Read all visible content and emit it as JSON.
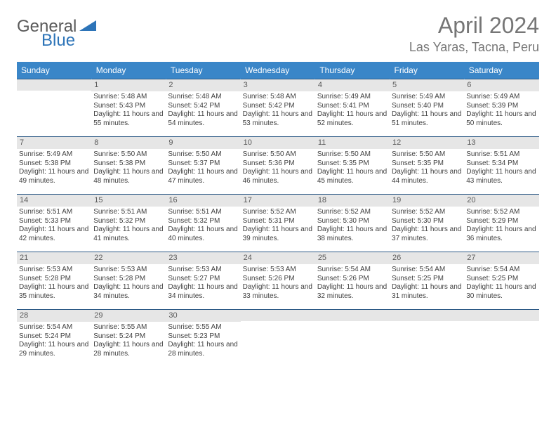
{
  "logo": {
    "part1": "General",
    "part2": "Blue"
  },
  "title": "April 2024",
  "location": "Las Yaras, Tacna, Peru",
  "colors": {
    "header_bg": "#3a86c8",
    "header_text": "#ffffff",
    "daynum_bg": "#e6e6e6",
    "daynum_text": "#5a5a5a",
    "row_border": "#2d5a86",
    "body_text": "#404040",
    "logo_gray": "#5a5a5a",
    "logo_blue": "#2d74b8",
    "title_color": "#767676"
  },
  "day_labels": [
    "Sunday",
    "Monday",
    "Tuesday",
    "Wednesday",
    "Thursday",
    "Friday",
    "Saturday"
  ],
  "weeks": [
    [
      null,
      {
        "n": "1",
        "sr": "5:48 AM",
        "ss": "5:43 PM",
        "dl": "11 hours and 55 minutes."
      },
      {
        "n": "2",
        "sr": "5:48 AM",
        "ss": "5:42 PM",
        "dl": "11 hours and 54 minutes."
      },
      {
        "n": "3",
        "sr": "5:48 AM",
        "ss": "5:42 PM",
        "dl": "11 hours and 53 minutes."
      },
      {
        "n": "4",
        "sr": "5:49 AM",
        "ss": "5:41 PM",
        "dl": "11 hours and 52 minutes."
      },
      {
        "n": "5",
        "sr": "5:49 AM",
        "ss": "5:40 PM",
        "dl": "11 hours and 51 minutes."
      },
      {
        "n": "6",
        "sr": "5:49 AM",
        "ss": "5:39 PM",
        "dl": "11 hours and 50 minutes."
      }
    ],
    [
      {
        "n": "7",
        "sr": "5:49 AM",
        "ss": "5:38 PM",
        "dl": "11 hours and 49 minutes."
      },
      {
        "n": "8",
        "sr": "5:50 AM",
        "ss": "5:38 PM",
        "dl": "11 hours and 48 minutes."
      },
      {
        "n": "9",
        "sr": "5:50 AM",
        "ss": "5:37 PM",
        "dl": "11 hours and 47 minutes."
      },
      {
        "n": "10",
        "sr": "5:50 AM",
        "ss": "5:36 PM",
        "dl": "11 hours and 46 minutes."
      },
      {
        "n": "11",
        "sr": "5:50 AM",
        "ss": "5:35 PM",
        "dl": "11 hours and 45 minutes."
      },
      {
        "n": "12",
        "sr": "5:50 AM",
        "ss": "5:35 PM",
        "dl": "11 hours and 44 minutes."
      },
      {
        "n": "13",
        "sr": "5:51 AM",
        "ss": "5:34 PM",
        "dl": "11 hours and 43 minutes."
      }
    ],
    [
      {
        "n": "14",
        "sr": "5:51 AM",
        "ss": "5:33 PM",
        "dl": "11 hours and 42 minutes."
      },
      {
        "n": "15",
        "sr": "5:51 AM",
        "ss": "5:32 PM",
        "dl": "11 hours and 41 minutes."
      },
      {
        "n": "16",
        "sr": "5:51 AM",
        "ss": "5:32 PM",
        "dl": "11 hours and 40 minutes."
      },
      {
        "n": "17",
        "sr": "5:52 AM",
        "ss": "5:31 PM",
        "dl": "11 hours and 39 minutes."
      },
      {
        "n": "18",
        "sr": "5:52 AM",
        "ss": "5:30 PM",
        "dl": "11 hours and 38 minutes."
      },
      {
        "n": "19",
        "sr": "5:52 AM",
        "ss": "5:30 PM",
        "dl": "11 hours and 37 minutes."
      },
      {
        "n": "20",
        "sr": "5:52 AM",
        "ss": "5:29 PM",
        "dl": "11 hours and 36 minutes."
      }
    ],
    [
      {
        "n": "21",
        "sr": "5:53 AM",
        "ss": "5:28 PM",
        "dl": "11 hours and 35 minutes."
      },
      {
        "n": "22",
        "sr": "5:53 AM",
        "ss": "5:28 PM",
        "dl": "11 hours and 34 minutes."
      },
      {
        "n": "23",
        "sr": "5:53 AM",
        "ss": "5:27 PM",
        "dl": "11 hours and 34 minutes."
      },
      {
        "n": "24",
        "sr": "5:53 AM",
        "ss": "5:26 PM",
        "dl": "11 hours and 33 minutes."
      },
      {
        "n": "25",
        "sr": "5:54 AM",
        "ss": "5:26 PM",
        "dl": "11 hours and 32 minutes."
      },
      {
        "n": "26",
        "sr": "5:54 AM",
        "ss": "5:25 PM",
        "dl": "11 hours and 31 minutes."
      },
      {
        "n": "27",
        "sr": "5:54 AM",
        "ss": "5:25 PM",
        "dl": "11 hours and 30 minutes."
      }
    ],
    [
      {
        "n": "28",
        "sr": "5:54 AM",
        "ss": "5:24 PM",
        "dl": "11 hours and 29 minutes."
      },
      {
        "n": "29",
        "sr": "5:55 AM",
        "ss": "5:24 PM",
        "dl": "11 hours and 28 minutes."
      },
      {
        "n": "30",
        "sr": "5:55 AM",
        "ss": "5:23 PM",
        "dl": "11 hours and 28 minutes."
      },
      null,
      null,
      null,
      null
    ]
  ],
  "labels": {
    "sunrise": "Sunrise:",
    "sunset": "Sunset:",
    "daylight": "Daylight:"
  }
}
